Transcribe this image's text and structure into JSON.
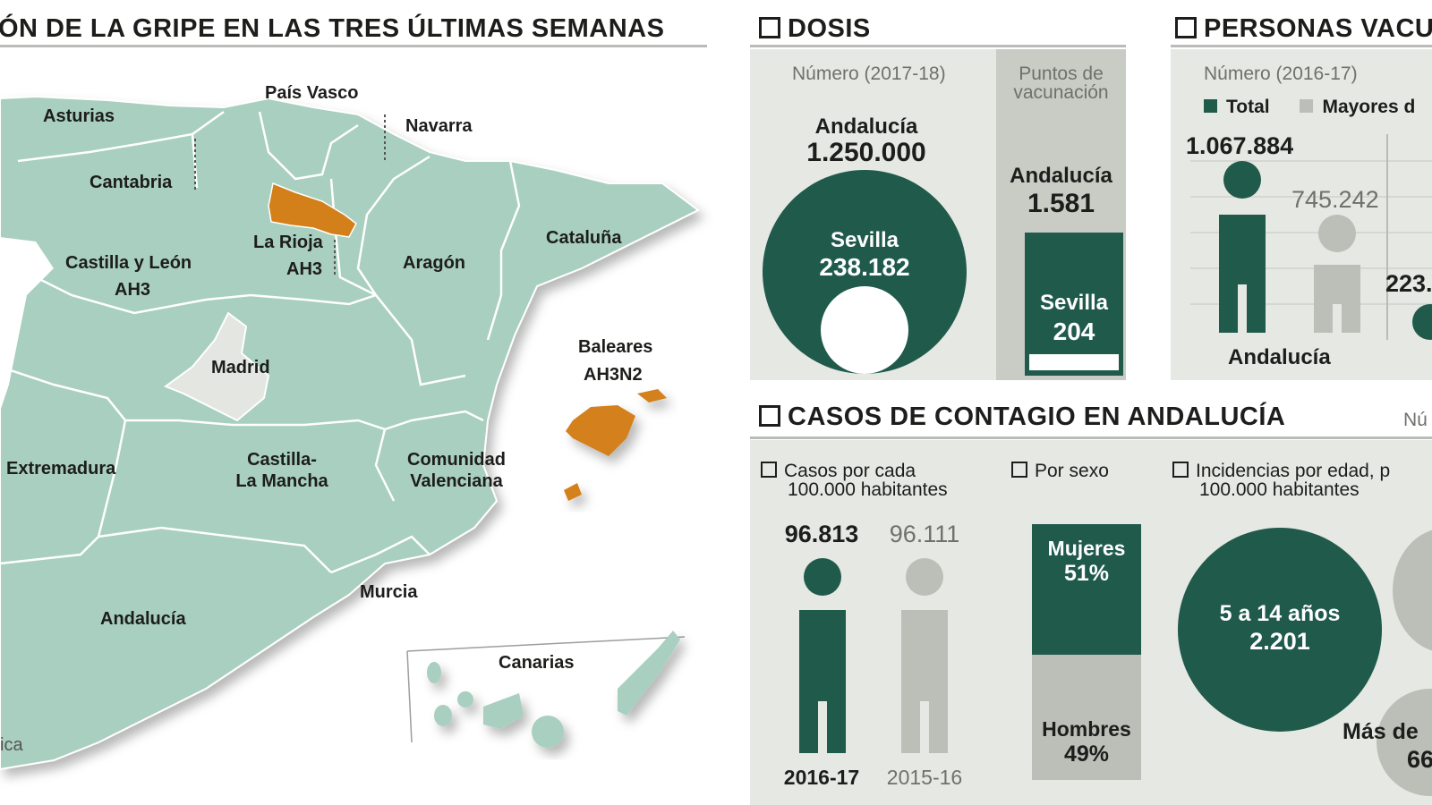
{
  "map": {
    "title": "ÓN DE LA GRIPE EN LAS TRES ÚLTIMAS SEMANAS",
    "regions": {
      "pais_vasco": "País Vasco",
      "asturias": "Asturias",
      "navarra": "Navarra",
      "cantabria": "Cantabria",
      "la_rioja": "La Rioja",
      "la_rioja_strain": "AH3",
      "castilla_leon": "Castilla y León",
      "castilla_leon_strain": "AH3",
      "aragon": "Aragón",
      "cataluna": "Cataluña",
      "madrid": "Madrid",
      "baleares": "Baleares",
      "baleares_strain": "AH3N2",
      "extremadura": "Extremadura",
      "castilla_la_mancha_1": "Castilla-",
      "castilla_la_mancha_2": "La Mancha",
      "valenciana_1": "Comunidad",
      "valenciana_2": "Valenciana",
      "murcia": "Murcia",
      "andalucia": "Andalucía",
      "canarias": "Canarias"
    },
    "footnote": "ica",
    "colors": {
      "land": "#a8cfbf",
      "highlight": "#d4801a",
      "madrid": "#e4e6e2",
      "border": "#ffffff"
    }
  },
  "dosis": {
    "title": "DOSIS",
    "subtitle": "Número (2017-18)",
    "total_label": "Andalucía",
    "total_value": "1.250.000",
    "inner_label": "Sevilla",
    "inner_value": "238.182",
    "puntos_sub_1": "Puntos de",
    "puntos_sub_2": "vacunación",
    "puntos_total_label": "Andalucía",
    "puntos_total_value": "1.581",
    "puntos_inner_label": "Sevilla",
    "puntos_inner_value": "204"
  },
  "personas": {
    "title": "PERSONAS VACU",
    "subtitle": "Número (2016-17)",
    "legend_total": "Total",
    "legend_mayores": "Mayores d",
    "value_total": "1.067.884",
    "value_mayores": "745.242",
    "value_partial": "223.",
    "region": "Andalucía"
  },
  "casos": {
    "title": "CASOS DE CONTAGIO EN ANDALUCÍA",
    "right_cut": "Nú",
    "sub1_1": "Casos por cada",
    "sub1_2": "100.000 habitantes",
    "sub2": "Por sexo",
    "sub3_1": "Incidencias por edad, p",
    "sub3_2": "100.000 habitantes",
    "season_a_value": "96.813",
    "season_a_label": "2016-17",
    "season_b_value": "96.111",
    "season_b_label": "2015-16",
    "mujeres_label": "Mujeres",
    "mujeres_pct": "51%",
    "hombres_label": "Hombres",
    "hombres_pct": "49%",
    "age_label": "5 a 14 años",
    "age_value": "2.201",
    "age_more_label": "Más de",
    "age_more_value": "66"
  },
  "colors": {
    "dark_green": "#1f5a4b",
    "light_gray": "#bcbfb8",
    "panel": "#e6e8e3",
    "panel_dark": "#c9ccc4"
  }
}
